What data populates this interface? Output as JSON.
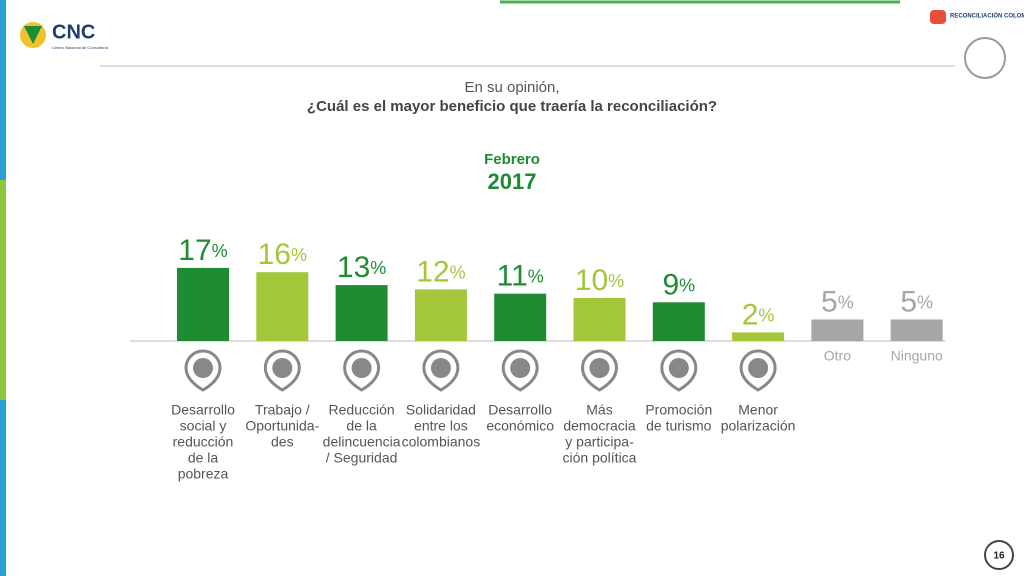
{
  "header": {
    "logo": "CNC",
    "logo_subtitle": "Centro Nacional de Consultoría",
    "partner": "RECONCILIACIÓN COLOMBIA",
    "page": "16"
  },
  "chart_data": {
    "type": "bar",
    "question_intro": "En su opinión,",
    "title": "¿Cuál es el mayor beneficio que traería la reconciliación?",
    "subtitle": "Febrero",
    "year": "2017",
    "categories": [
      [
        "Desarrollo",
        "social y",
        "reducción",
        "de la",
        "pobreza"
      ],
      [
        "Trabajo /",
        "Oportunida-",
        "des"
      ],
      [
        "Reducción",
        "de la",
        "delincuencia",
        "/ Seguridad"
      ],
      [
        "Solidaridad",
        "entre los",
        "colombianos"
      ],
      [
        "Desarrollo",
        "económico"
      ],
      [
        "Más",
        "democracia",
        "y participa-",
        "ción política"
      ],
      [
        "Promoción",
        "de turismo"
      ],
      [
        "Menor",
        "polarización"
      ],
      [
        "Otro"
      ],
      [
        "Ninguno"
      ]
    ],
    "values": [
      17,
      16,
      13,
      12,
      11,
      10,
      9,
      2,
      5,
      5
    ],
    "value_labels": [
      "17%",
      "16%",
      "13%",
      "12%",
      "11%",
      "10%",
      "9%",
      "2%",
      "5%",
      "5%"
    ],
    "colors": [
      "#1e8c32",
      "#a3c739",
      "#1e8c32",
      "#a3c739",
      "#1e8c32",
      "#a3c739",
      "#1e8c32",
      "#a3c739",
      "#a6a6a6",
      "#a6a6a6"
    ]
  }
}
